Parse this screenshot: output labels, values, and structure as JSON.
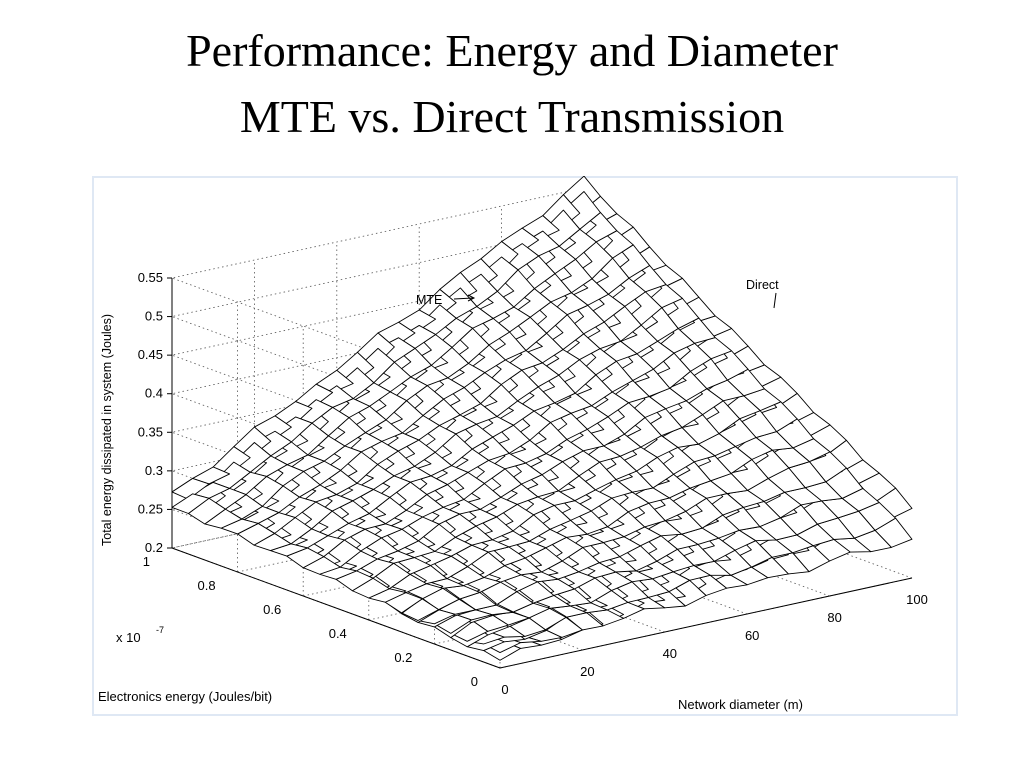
{
  "slide": {
    "title_line1": "Performance: Energy and Diameter",
    "title_line2": "MTE vs. Direct Transmission"
  },
  "chart_data": {
    "type": "surface",
    "zlabel": "Total energy dissipated in system (Joules)",
    "ylabel": "Electronics energy (Joules/bit)",
    "xlabel": "Network diameter (m)",
    "y_scale_label": "x 10",
    "y_scale_exponent": "-7",
    "z_ticks": [
      "0.2",
      "0.25",
      "0.3",
      "0.35",
      "0.4",
      "0.45",
      "0.5",
      "0.55"
    ],
    "y_ticks": [
      "0",
      "0.2",
      "0.4",
      "0.6",
      "0.8",
      "1"
    ],
    "x_ticks": [
      "0",
      "20",
      "40",
      "60",
      "80",
      "100"
    ],
    "xlim": [
      0,
      100
    ],
    "ylim": [
      0,
      1e-07
    ],
    "zlim": [
      0.2,
      0.55
    ],
    "grid": true,
    "annotations": [
      {
        "text": "MTE",
        "points_to": "MTE surface"
      },
      {
        "text": "Direct",
        "points_to": "Direct surface"
      }
    ],
    "series": [
      {
        "name": "MTE",
        "corner_values": {
          "d0_e0": 0.22,
          "d100_e0": 0.25,
          "d0_e1": 0.25,
          "d100_e1": 0.54
        }
      },
      {
        "name": "Direct",
        "corner_values": {
          "d0_e0": 0.21,
          "d100_e0": 0.29,
          "d0_e1": 0.27,
          "d100_e1": 0.56
        }
      }
    ]
  },
  "colors": {
    "mesh_stroke": "#000000",
    "mesh_fill": "#ffffff",
    "frame_border": "#dfe8f4"
  }
}
